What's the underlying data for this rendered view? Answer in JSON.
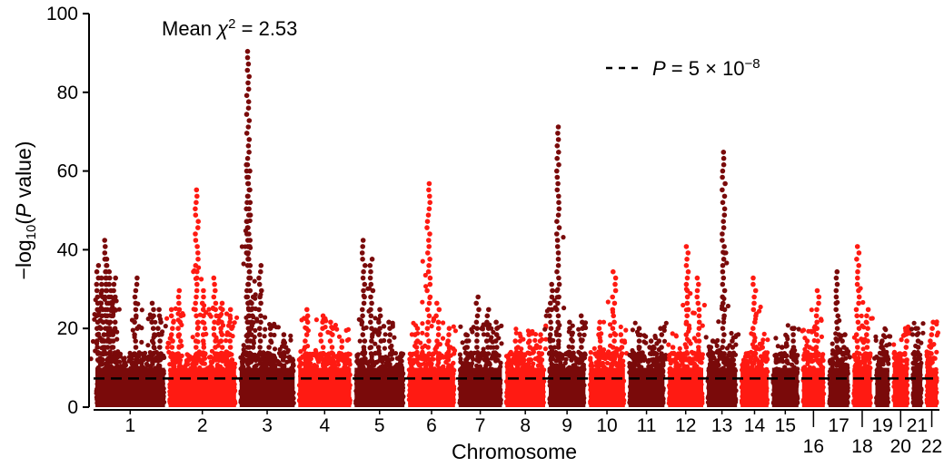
{
  "chart_data": {
    "type": "scatter",
    "subtype": "manhattan",
    "xlabel": "Chromosome",
    "ylabel": "−log10(P value)",
    "ylabel_parts": {
      "prefix": "−log",
      "subscript": "10",
      "open": "(",
      "italic": "P",
      "rest": " value)"
    },
    "ylim": [
      0,
      100
    ],
    "yticks": [
      0,
      20,
      40,
      60,
      80,
      100
    ],
    "grid": false,
    "legend_position": "top-right",
    "mean_chi2": {
      "prefix": "Mean ",
      "symbol": "χ",
      "superscript": "2",
      "value": " = 2.53"
    },
    "threshold": {
      "value": 7.3,
      "label_italic": "P",
      "label_mid": " = 5 × 10",
      "label_exp": "−8",
      "style": "dashed",
      "color": "#000000"
    },
    "colors": {
      "dark": "#7a0a0a",
      "bright": "#ff1a12"
    },
    "chromosomes": [
      {
        "name": "1",
        "length": 1.0,
        "peaks": [
          [
            0.05,
            37
          ],
          [
            0.12,
            33
          ],
          [
            0.17,
            43
          ],
          [
            0.19,
            39
          ],
          [
            0.23,
            36
          ],
          [
            0.28,
            34
          ],
          [
            0.58,
            34
          ],
          [
            0.81,
            27
          ],
          [
            0.9,
            26
          ]
        ]
      },
      {
        "name": "2",
        "length": 0.97,
        "peaks": [
          [
            0.08,
            25
          ],
          [
            0.18,
            30
          ],
          [
            0.42,
            56
          ],
          [
            0.52,
            31
          ],
          [
            0.68,
            34
          ],
          [
            0.77,
            27
          ],
          [
            0.9,
            25
          ]
        ]
      },
      {
        "name": "3",
        "length": 0.8,
        "peaks": [
          [
            0.17,
            91
          ],
          [
            0.19,
            62
          ],
          [
            0.24,
            29
          ],
          [
            0.38,
            37
          ],
          [
            0.55,
            21
          ],
          [
            0.8,
            19
          ]
        ]
      },
      {
        "name": "4",
        "length": 0.77,
        "peaks": [
          [
            0.18,
            26
          ],
          [
            0.45,
            24
          ],
          [
            0.62,
            22
          ],
          [
            0.82,
            18
          ]
        ]
      },
      {
        "name": "5",
        "length": 0.73,
        "peaks": [
          [
            0.2,
            43
          ],
          [
            0.35,
            38
          ],
          [
            0.5,
            25
          ],
          [
            0.7,
            22
          ]
        ]
      },
      {
        "name": "6",
        "length": 0.69,
        "peaks": [
          [
            0.2,
            21
          ],
          [
            0.44,
            57
          ],
          [
            0.62,
            27
          ],
          [
            0.85,
            21
          ]
        ]
      },
      {
        "name": "7",
        "length": 0.64,
        "peaks": [
          [
            0.2,
            19
          ],
          [
            0.44,
            29
          ],
          [
            0.65,
            26
          ],
          [
            0.85,
            22
          ]
        ]
      },
      {
        "name": "8",
        "length": 0.59,
        "peaks": [
          [
            0.3,
            18
          ],
          [
            0.6,
            19
          ],
          [
            0.85,
            20
          ]
        ]
      },
      {
        "name": "9",
        "length": 0.55,
        "peaks": [
          [
            0.1,
            32
          ],
          [
            0.28,
            72
          ],
          [
            0.6,
            22
          ],
          [
            0.85,
            24
          ]
        ]
      },
      {
        "name": "10",
        "length": 0.54,
        "peaks": [
          [
            0.3,
            23
          ],
          [
            0.68,
            36
          ],
          [
            0.85,
            20
          ]
        ]
      },
      {
        "name": "11",
        "length": 0.54,
        "peaks": [
          [
            0.3,
            21
          ],
          [
            0.6,
            17
          ],
          [
            0.85,
            21
          ]
        ]
      },
      {
        "name": "12",
        "length": 0.53,
        "peaks": [
          [
            0.2,
            16
          ],
          [
            0.55,
            42
          ],
          [
            0.82,
            33
          ]
        ]
      },
      {
        "name": "13",
        "length": 0.46,
        "peaks": [
          [
            0.2,
            18
          ],
          [
            0.55,
            65
          ],
          [
            0.8,
            18
          ]
        ]
      },
      {
        "name": "14",
        "length": 0.43,
        "peaks": [
          [
            0.5,
            33
          ],
          [
            0.8,
            15
          ]
        ]
      },
      {
        "name": "15",
        "length": 0.41,
        "peaks": [
          [
            0.35,
            16
          ],
          [
            0.75,
            21
          ]
        ]
      },
      {
        "name": "16",
        "length": 0.36,
        "peaks": [
          [
            0.3,
            17
          ],
          [
            0.65,
            31
          ]
        ]
      },
      {
        "name": "17",
        "length": 0.33,
        "peaks": [
          [
            0.45,
            36
          ],
          [
            0.7,
            19
          ]
        ]
      },
      {
        "name": "18",
        "length": 0.31,
        "peaks": [
          [
            0.3,
            42
          ],
          [
            0.7,
            25
          ]
        ]
      },
      {
        "name": "19",
        "length": 0.24,
        "peaks": [
          [
            0.4,
            18
          ],
          [
            0.7,
            14
          ]
        ]
      },
      {
        "name": "20",
        "length": 0.26,
        "peaks": [
          [
            0.4,
            14
          ],
          [
            0.8,
            20
          ]
        ]
      },
      {
        "name": "21",
        "length": 0.19,
        "peaks": [
          [
            0.5,
            21
          ]
        ]
      },
      {
        "name": "22",
        "length": 0.21,
        "peaks": [
          [
            0.5,
            22
          ]
        ]
      }
    ]
  }
}
